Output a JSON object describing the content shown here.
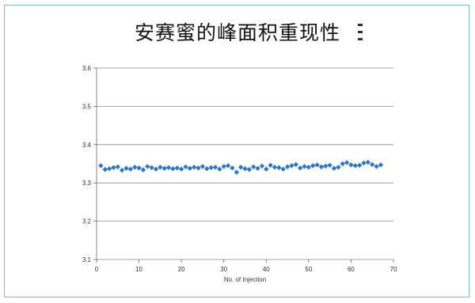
{
  "title": "安赛蜜的峰面积重现性",
  "chart_data": {
    "type": "scatter",
    "title": "安赛蜜的峰面积重现性",
    "xlabel": "No. of Injection",
    "ylabel": "",
    "xlim": [
      0,
      70
    ],
    "ylim": [
      3.1,
      3.6
    ],
    "xticks": [
      0,
      10,
      20,
      30,
      40,
      50,
      60,
      70
    ],
    "yticks": [
      3.1,
      3.2,
      3.3,
      3.4,
      3.5,
      3.6
    ],
    "xtick_labels": [
      "0",
      "10",
      "20",
      "30",
      "40",
      "50",
      "60",
      "70"
    ],
    "ytick_labels": [
      "3.1",
      "3.2",
      "3.3",
      "3.4",
      "3.5",
      "3.6"
    ],
    "grid": true,
    "legend": "none",
    "marker_color": "#2f78bf",
    "series": [
      {
        "x": [
          1,
          2,
          3,
          4,
          5,
          6,
          7,
          8,
          9,
          10,
          11,
          12,
          13,
          14,
          15,
          16,
          17,
          18,
          19,
          20,
          21,
          22,
          23,
          24,
          25,
          26,
          27,
          28,
          29,
          30,
          31,
          32,
          33,
          34,
          35,
          36,
          37,
          38,
          39,
          40,
          41,
          42,
          43,
          44,
          45,
          46,
          47,
          48,
          49,
          50,
          51,
          52,
          53,
          54,
          55,
          56,
          57,
          58,
          59,
          60,
          61,
          62,
          63,
          64,
          65,
          66,
          67
        ],
        "values": [
          3.345,
          3.335,
          3.337,
          3.34,
          3.342,
          3.333,
          3.338,
          3.336,
          3.341,
          3.339,
          3.334,
          3.343,
          3.34,
          3.336,
          3.341,
          3.338,
          3.34,
          3.337,
          3.339,
          3.336,
          3.342,
          3.338,
          3.341,
          3.339,
          3.343,
          3.337,
          3.34,
          3.341,
          3.336,
          3.343,
          3.345,
          3.339,
          3.328,
          3.341,
          3.337,
          3.335,
          3.342,
          3.338,
          3.344,
          3.336,
          3.346,
          3.341,
          3.34,
          3.336,
          3.342,
          3.345,
          3.348,
          3.339,
          3.343,
          3.341,
          3.345,
          3.347,
          3.342,
          3.344,
          3.346,
          3.338,
          3.341,
          3.35,
          3.353,
          3.347,
          3.345,
          3.346,
          3.352,
          3.354,
          3.348,
          3.343,
          3.347
        ]
      }
    ]
  }
}
